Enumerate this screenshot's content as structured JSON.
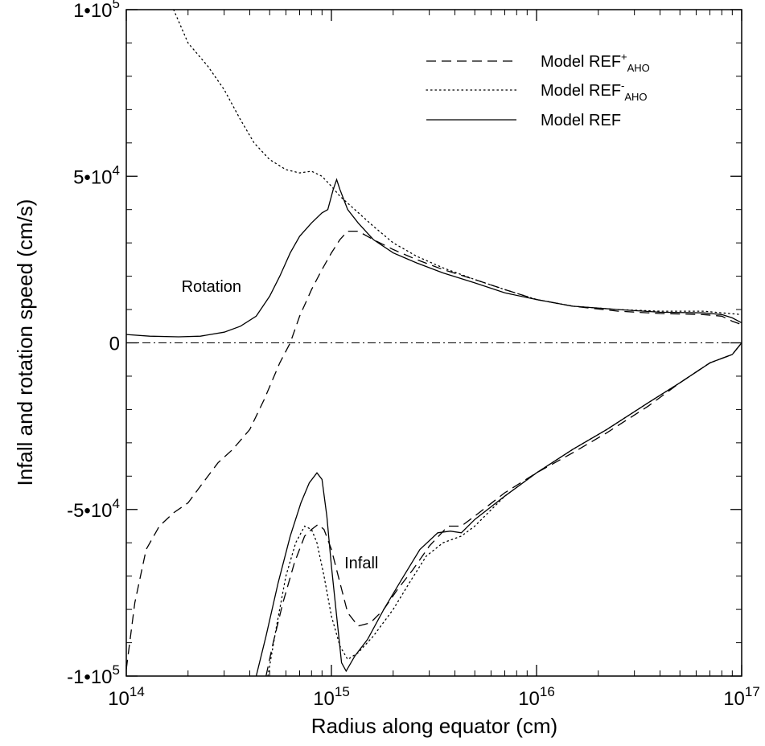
{
  "chart_data": {
    "type": "line",
    "title": "",
    "xlabel": "Radius along equator (cm)",
    "ylabel": "Infall and rotation speed (cm/s)",
    "x_scale": "log",
    "xlim": [
      100000000000000.0,
      1e+17
    ],
    "ylim": [
      -100000,
      100000
    ],
    "x_ticks": [
      {
        "value": 100000000000000.0,
        "mantissa": "10",
        "exp": "14"
      },
      {
        "value": 1000000000000000.0,
        "mantissa": "10",
        "exp": "15"
      },
      {
        "value": 1e+16,
        "mantissa": "10",
        "exp": "16"
      },
      {
        "value": 1e+17,
        "mantissa": "10",
        "exp": "17"
      }
    ],
    "y_ticks": [
      {
        "value": 100000,
        "mantissa": "1•10",
        "exp": "5"
      },
      {
        "value": 50000,
        "mantissa": "5•10",
        "exp": "4"
      },
      {
        "value": 0,
        "mantissa": "0",
        "exp": ""
      },
      {
        "value": -50000,
        "mantissa": "-5•10",
        "exp": "4"
      },
      {
        "value": -100000,
        "mantissa": "-1•10",
        "exp": "5"
      }
    ],
    "grid": false,
    "legend_position": "top-right",
    "legend": [
      {
        "base": "Model REF",
        "sup": "+",
        "sub": "AHO",
        "style": "dashed"
      },
      {
        "base": "Model REF",
        "sup": "-",
        "sub": "AHO",
        "style": "dotted"
      },
      {
        "base": "Model REF",
        "sup": "",
        "sub": "",
        "style": "solid"
      }
    ],
    "annotations": [
      {
        "text": "Rotation",
        "x": 260000000000000.0,
        "y": 17000
      },
      {
        "text": "Infall",
        "x": 1400000000000000.0,
        "y": -66000
      }
    ],
    "zero_line": {
      "y": 0,
      "style": "dash-dot"
    },
    "series": [
      {
        "id": "ref-plus-rotation",
        "style": "dashed",
        "points": [
          [
            100000000000000.0,
            -98000
          ],
          [
            110000000000000.0,
            -78000
          ],
          [
            125000000000000.0,
            -62000
          ],
          [
            145000000000000.0,
            -55000
          ],
          [
            170000000000000.0,
            -51000
          ],
          [
            200000000000000.0,
            -48000
          ],
          [
            230000000000000.0,
            -43000
          ],
          [
            280000000000000.0,
            -36000
          ],
          [
            330000000000000.0,
            -32000
          ],
          [
            400000000000000.0,
            -26000
          ],
          [
            470000000000000.0,
            -17000
          ],
          [
            560000000000000.0,
            -6000
          ],
          [
            630000000000000.0,
            0
          ],
          [
            700000000000000.0,
            8000
          ],
          [
            800000000000000.0,
            16000
          ],
          [
            900000000000000.0,
            22000
          ],
          [
            1000000000000000.0,
            27000
          ],
          [
            1100000000000000.0,
            31000
          ],
          [
            1200000000000000.0,
            33500
          ],
          [
            1350000000000000.0,
            33500
          ],
          [
            1600000000000000.0,
            31000
          ],
          [
            2000000000000000.0,
            28000
          ],
          [
            2600000000000000.0,
            25000
          ],
          [
            3500000000000000.0,
            22000
          ],
          [
            5000000000000000.0,
            19000
          ],
          [
            7000000000000000.0,
            16000
          ],
          [
            1e+16,
            13000
          ],
          [
            1.5e+16,
            11000
          ],
          [
            2.5e+16,
            9500
          ],
          [
            4e+16,
            8800
          ],
          [
            6.5e+16,
            8500
          ],
          [
            8e+16,
            8000
          ],
          [
            9e+16,
            6500
          ],
          [
            1e+17,
            5500
          ]
        ]
      },
      {
        "id": "ref-minus-rotation",
        "style": "dotted",
        "points": [
          [
            170000000000000.0,
            100000
          ],
          [
            200000000000000.0,
            90000
          ],
          [
            250000000000000.0,
            83000
          ],
          [
            300000000000000.0,
            76000
          ],
          [
            360000000000000.0,
            67000
          ],
          [
            420000000000000.0,
            60000
          ],
          [
            500000000000000.0,
            55000
          ],
          [
            600000000000000.0,
            52000
          ],
          [
            700000000000000.0,
            51000
          ],
          [
            800000000000000.0,
            51500
          ],
          [
            900000000000000.0,
            50000
          ],
          [
            1000000000000000.0,
            47000
          ],
          [
            1100000000000000.0,
            44000
          ],
          [
            1300000000000000.0,
            40000
          ],
          [
            1600000000000000.0,
            35000
          ],
          [
            2000000000000000.0,
            30000
          ],
          [
            2600000000000000.0,
            26000
          ],
          [
            3500000000000000.0,
            22500
          ],
          [
            5000000000000000.0,
            19000
          ],
          [
            7000000000000000.0,
            16000
          ],
          [
            1e+16,
            13000
          ],
          [
            1.5e+16,
            11000
          ],
          [
            2.5e+16,
            10000
          ],
          [
            4e+16,
            9500
          ],
          [
            6.5e+16,
            9500
          ],
          [
            8e+16,
            9000
          ],
          [
            1e+17,
            8500
          ]
        ]
      },
      {
        "id": "ref-rotation",
        "style": "solid",
        "points": [
          [
            100000000000000.0,
            2500
          ],
          [
            130000000000000.0,
            2000
          ],
          [
            180000000000000.0,
            1800
          ],
          [
            230000000000000.0,
            2000
          ],
          [
            300000000000000.0,
            3200
          ],
          [
            360000000000000.0,
            5000
          ],
          [
            430000000000000.0,
            8000
          ],
          [
            500000000000000.0,
            14000
          ],
          [
            560000000000000.0,
            20000
          ],
          [
            630000000000000.0,
            27000
          ],
          [
            700000000000000.0,
            32000
          ],
          [
            800000000000000.0,
            36000
          ],
          [
            900000000000000.0,
            39000
          ],
          [
            960000000000000.0,
            40000
          ],
          [
            1020000000000000.0,
            46000
          ],
          [
            1060000000000000.0,
            49000
          ],
          [
            1100000000000000.0,
            46000
          ],
          [
            1200000000000000.0,
            40000
          ],
          [
            1350000000000000.0,
            36000
          ],
          [
            1600000000000000.0,
            31000
          ],
          [
            2000000000000000.0,
            27000
          ],
          [
            2600000000000000.0,
            24000
          ],
          [
            3500000000000000.0,
            21000
          ],
          [
            5000000000000000.0,
            18000
          ],
          [
            7000000000000000.0,
            15000
          ],
          [
            1e+16,
            13000
          ],
          [
            1.5e+16,
            11000
          ],
          [
            2.5e+16,
            10000
          ],
          [
            4e+16,
            9200
          ],
          [
            6.5e+16,
            9000
          ],
          [
            8e+16,
            8500
          ],
          [
            9e+16,
            7500
          ],
          [
            1e+17,
            6000
          ]
        ]
      },
      {
        "id": "ref-plus-infall",
        "style": "dashed",
        "points": [
          [
            480000000000000.0,
            -100000
          ],
          [
            520000000000000.0,
            -90000
          ],
          [
            580000000000000.0,
            -78000
          ],
          [
            660000000000000.0,
            -66000
          ],
          [
            740000000000000.0,
            -58000
          ],
          [
            800000000000000.0,
            -56000
          ],
          [
            860000000000000.0,
            -54500
          ],
          [
            920000000000000.0,
            -56000
          ],
          [
            1000000000000000.0,
            -62000
          ],
          [
            1100000000000000.0,
            -72000
          ],
          [
            1200000000000000.0,
            -81000
          ],
          [
            1350000000000000.0,
            -85000
          ],
          [
            1550000000000000.0,
            -84000
          ],
          [
            1800000000000000.0,
            -80000
          ],
          [
            2100000000000000.0,
            -74000
          ],
          [
            2500000000000000.0,
            -68000
          ],
          [
            3000000000000000.0,
            -61000
          ],
          [
            3700000000000000.0,
            -55000
          ],
          [
            4300000000000000.0,
            -55000
          ],
          [
            5000000000000000.0,
            -52000
          ],
          [
            7000000000000000.0,
            -45000
          ],
          [
            1e+16,
            -39000
          ],
          [
            1.5e+16,
            -33000
          ],
          [
            2.2e+16,
            -27000
          ],
          [
            3.5e+16,
            -19000
          ],
          [
            5e+16,
            -12000
          ],
          [
            7e+16,
            -6000
          ],
          [
            9e+16,
            -3500
          ],
          [
            1e+17,
            0
          ]
        ]
      },
      {
        "id": "ref-minus-infall",
        "style": "dotted",
        "points": [
          [
            490000000000000.0,
            -100000
          ],
          [
            540000000000000.0,
            -85000
          ],
          [
            600000000000000.0,
            -70000
          ],
          [
            670000000000000.0,
            -60000
          ],
          [
            740000000000000.0,
            -55000
          ],
          [
            800000000000000.0,
            -56000
          ],
          [
            850000000000000.0,
            -60000
          ],
          [
            920000000000000.0,
            -70000
          ],
          [
            1000000000000000.0,
            -82000
          ],
          [
            1100000000000000.0,
            -91000
          ],
          [
            1200000000000000.0,
            -95000
          ],
          [
            1350000000000000.0,
            -93000
          ],
          [
            1600000000000000.0,
            -88000
          ],
          [
            2000000000000000.0,
            -80000
          ],
          [
            2400000000000000.0,
            -72000
          ],
          [
            2900000000000000.0,
            -64000
          ],
          [
            3500000000000000.0,
            -60000
          ],
          [
            4300000000000000.0,
            -58000
          ],
          [
            5000000000000000.0,
            -55000
          ],
          [
            7000000000000000.0,
            -46000
          ],
          [
            1e+16,
            -39000
          ],
          [
            1.5e+16,
            -32000
          ],
          [
            2.2e+16,
            -26000
          ],
          [
            3.5e+16,
            -18000
          ],
          [
            5e+16,
            -12000
          ],
          [
            7e+16,
            -6000
          ],
          [
            9e+16,
            -3500
          ],
          [
            1e+17,
            0
          ]
        ]
      },
      {
        "id": "ref-infall",
        "style": "solid",
        "points": [
          [
            430000000000000.0,
            -100000
          ],
          [
            480000000000000.0,
            -88000
          ],
          [
            550000000000000.0,
            -72000
          ],
          [
            630000000000000.0,
            -58000
          ],
          [
            710000000000000.0,
            -48000
          ],
          [
            780000000000000.0,
            -42000
          ],
          [
            850000000000000.0,
            -39000
          ],
          [
            900000000000000.0,
            -41000
          ],
          [
            950000000000000.0,
            -52000
          ],
          [
            1000000000000000.0,
            -67000
          ],
          [
            1060000000000000.0,
            -82000
          ],
          [
            1120000000000000.0,
            -96000
          ],
          [
            1180000000000000.0,
            -98500
          ],
          [
            1300000000000000.0,
            -94000
          ],
          [
            1500000000000000.0,
            -89000
          ],
          [
            1800000000000000.0,
            -80000
          ],
          [
            2200000000000000.0,
            -71000
          ],
          [
            2700000000000000.0,
            -62000
          ],
          [
            3300000000000000.0,
            -57000
          ],
          [
            3800000000000000.0,
            -56500
          ],
          [
            4300000000000000.0,
            -57000
          ],
          [
            5000000000000000.0,
            -53000
          ],
          [
            7000000000000000.0,
            -46000
          ],
          [
            1e+16,
            -39000
          ],
          [
            1.5e+16,
            -32000
          ],
          [
            2.2e+16,
            -26000
          ],
          [
            3.5e+16,
            -18000
          ],
          [
            5e+16,
            -12000
          ],
          [
            7e+16,
            -6000
          ],
          [
            9e+16,
            -3500
          ],
          [
            1e+17,
            0
          ]
        ]
      }
    ]
  }
}
